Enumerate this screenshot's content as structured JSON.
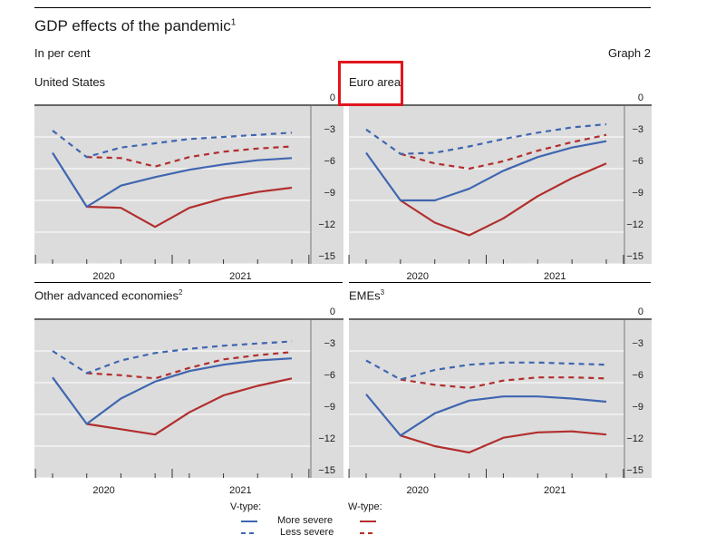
{
  "header": {
    "title": "GDP effects of the pandemic",
    "title_footnote": "1",
    "unit": "In per cent",
    "graph_label": "Graph 2"
  },
  "colors": {
    "more_severe": "#3f66b0",
    "less_severe": "#3f66b0",
    "w_more_severe": "#b22e2e",
    "w_less_severe": "#b22e2e",
    "plot_bg": "#dcdcdc",
    "highlight": "#e0161d"
  },
  "chart_data": [
    {
      "type": "line",
      "panel": "us",
      "title": "United States",
      "footnote": "",
      "ylim": [
        -15,
        0
      ],
      "yticks": [
        0,
        -3,
        -6,
        -9,
        -12,
        -15
      ],
      "yticklabels": [
        "0",
        "−3",
        "−6",
        "−9",
        "−12",
        "−15"
      ],
      "xlabels": [
        {
          "label": "2020",
          "x": 2.5
        },
        {
          "label": "2021",
          "x": 6.5
        }
      ],
      "x": [
        1,
        2,
        3,
        4,
        5,
        6,
        7,
        8
      ],
      "series": [
        {
          "name": "V-type more severe",
          "style": "solid-blue",
          "values": [
            -4.5,
            -9.6,
            -7.6,
            -6.8,
            -6.1,
            -5.6,
            -5.2,
            -5.0
          ]
        },
        {
          "name": "V-type less severe",
          "style": "dash-blue",
          "values": [
            -2.4,
            -4.9,
            -4.0,
            -3.6,
            -3.2,
            -3.0,
            -2.8,
            -2.6
          ]
        },
        {
          "name": "W-type more severe",
          "style": "solid-red",
          "values": [
            null,
            -9.6,
            -9.7,
            -11.5,
            -9.7,
            -8.8,
            -8.2,
            -7.8
          ]
        },
        {
          "name": "W-type less severe",
          "style": "dash-red",
          "values": [
            null,
            -4.9,
            -5.0,
            -5.8,
            -4.9,
            -4.4,
            -4.1,
            -3.9
          ]
        }
      ]
    },
    {
      "type": "line",
      "panel": "euro",
      "title": "Euro area",
      "footnote": "",
      "ylim": [
        -15,
        0
      ],
      "yticks": [
        0,
        -3,
        -6,
        -9,
        -12,
        -15
      ],
      "yticklabels": [
        "0",
        "−3",
        "−6",
        "−9",
        "−12",
        "−15"
      ],
      "xlabels": [
        {
          "label": "2020",
          "x": 2.5
        },
        {
          "label": "2021",
          "x": 6.5
        }
      ],
      "x": [
        1,
        2,
        3,
        4,
        5,
        6,
        7,
        8
      ],
      "series": [
        {
          "name": "V-type more severe",
          "style": "solid-blue",
          "values": [
            -4.5,
            -9.0,
            -9.0,
            -7.9,
            -6.2,
            -4.9,
            -4.0,
            -3.4
          ]
        },
        {
          "name": "V-type less severe",
          "style": "dash-blue",
          "values": [
            -2.3,
            -4.6,
            -4.5,
            -3.9,
            -3.2,
            -2.6,
            -2.1,
            -1.8
          ]
        },
        {
          "name": "W-type more severe",
          "style": "solid-red",
          "values": [
            null,
            -9.0,
            -11.1,
            -12.3,
            -10.7,
            -8.6,
            -6.9,
            -5.5
          ]
        },
        {
          "name": "W-type less severe",
          "style": "dash-red",
          "values": [
            null,
            -4.6,
            -5.5,
            -6.0,
            -5.3,
            -4.3,
            -3.5,
            -2.8
          ]
        }
      ]
    },
    {
      "type": "line",
      "panel": "oae",
      "title": "Other advanced economies",
      "footnote": "2",
      "ylim": [
        -15,
        0
      ],
      "yticks": [
        0,
        -3,
        -6,
        -9,
        -12,
        -15
      ],
      "yticklabels": [
        "0",
        "−3",
        "−6",
        "−9",
        "−12",
        "−15"
      ],
      "xlabels": [
        {
          "label": "2020",
          "x": 2.5
        },
        {
          "label": "2021",
          "x": 6.5
        }
      ],
      "x": [
        1,
        2,
        3,
        4,
        5,
        6,
        7,
        8
      ],
      "series": [
        {
          "name": "V-type more severe",
          "style": "solid-blue",
          "values": [
            -5.5,
            -9.9,
            -7.5,
            -5.9,
            -4.9,
            -4.3,
            -3.9,
            -3.7
          ]
        },
        {
          "name": "V-type less severe",
          "style": "dash-blue",
          "values": [
            -3.0,
            -5.1,
            -3.9,
            -3.2,
            -2.8,
            -2.5,
            -2.3,
            -2.1
          ]
        },
        {
          "name": "W-type more severe",
          "style": "solid-red",
          "values": [
            null,
            -9.9,
            -10.4,
            -10.9,
            -8.8,
            -7.2,
            -6.3,
            -5.6
          ]
        },
        {
          "name": "W-type less severe",
          "style": "dash-red",
          "values": [
            null,
            -5.1,
            -5.3,
            -5.6,
            -4.6,
            -3.8,
            -3.4,
            -3.1
          ]
        }
      ]
    },
    {
      "type": "line",
      "panel": "emes",
      "title": "EMEs",
      "footnote": "3",
      "ylim": [
        -15,
        0
      ],
      "yticks": [
        0,
        -3,
        -6,
        -9,
        -12,
        -15
      ],
      "yticklabels": [
        "0",
        "−3",
        "−6",
        "−9",
        "−12",
        "−15"
      ],
      "xlabels": [
        {
          "label": "2020",
          "x": 2.5
        },
        {
          "label": "2021",
          "x": 6.5
        }
      ],
      "x": [
        1,
        2,
        3,
        4,
        5,
        6,
        7,
        8
      ],
      "series": [
        {
          "name": "V-type more severe",
          "style": "solid-blue",
          "values": [
            -7.1,
            -11.0,
            -8.9,
            -7.7,
            -7.3,
            -7.3,
            -7.5,
            -7.8
          ]
        },
        {
          "name": "V-type less severe",
          "style": "dash-blue",
          "values": [
            -3.9,
            -5.7,
            -4.8,
            -4.3,
            -4.1,
            -4.1,
            -4.2,
            -4.3
          ]
        },
        {
          "name": "W-type more severe",
          "style": "solid-red",
          "values": [
            null,
            -11.0,
            -12.0,
            -12.6,
            -11.2,
            -10.7,
            -10.6,
            -10.9
          ]
        },
        {
          "name": "W-type less severe",
          "style": "dash-red",
          "values": [
            null,
            -5.7,
            -6.2,
            -6.5,
            -5.8,
            -5.5,
            -5.5,
            -5.6
          ]
        }
      ]
    }
  ],
  "legend": {
    "v_type_label": "V-type:",
    "w_type_label": "W-type:",
    "more_severe_label": "More severe",
    "less_severe_label": "Less severe"
  }
}
